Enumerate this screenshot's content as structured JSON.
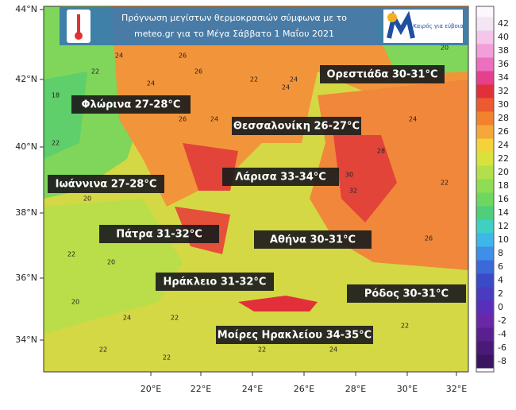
{
  "header": {
    "title_lines": [
      "Πρόγνωση μεγίστων θερμοκρασιών σύμφωνα με το",
      "meteo.gr για το Μέγα Σάββατο 1 Μαΐου 2021"
    ],
    "logo_text": "Καιρός για εύβοια"
  },
  "map": {
    "lat_ticks": [
      "44°N",
      "42°N",
      "40°N",
      "38°N",
      "36°N",
      "34°N"
    ],
    "lon_ticks": [
      "20°E",
      "22°E",
      "24°E",
      "26°E",
      "28°E",
      "30°E",
      "32°E"
    ],
    "city_labels": [
      "Ορεστιάδα 30-31°C",
      "Φλώρινα 27-28°C",
      "Θεσσαλονίκη 26-27°C",
      "Λάρισα 33-34°C",
      "Ιωάννινα 27-28°C",
      "Πάτρα 31-32°C",
      "Αθήνα 30-31°C",
      "Ηράκλειο 31-32°C",
      "Ρόδος 30-31°C",
      "Μοίρες Ηρακλείου 34-35°C"
    ],
    "contour_labels": [
      "18",
      "22",
      "24",
      "26",
      "22",
      "20",
      "24",
      "26",
      "22",
      "24",
      "20",
      "22",
      "24",
      "22",
      "26",
      "24",
      "22",
      "20",
      "22",
      "24",
      "22",
      "26",
      "30",
      "28",
      "32",
      "24",
      "22",
      "20",
      "22",
      "24"
    ]
  },
  "legend": {
    "ticks": [
      "42",
      "40",
      "38",
      "36",
      "34",
      "32",
      "30",
      "28",
      "26",
      "24",
      "22",
      "20",
      "18",
      "16",
      "14",
      "12",
      "10",
      "8",
      "6",
      "4",
      "2",
      "0",
      "-2",
      "-4",
      "-6",
      "-8"
    ],
    "colors": [
      "#f3e6f3",
      "#f4c6ea",
      "#f19fd9",
      "#ec6fc0",
      "#e63f8c",
      "#e2303a",
      "#ec5a30",
      "#f2822f",
      "#f5a73a",
      "#f3d23c",
      "#d9e23c",
      "#b3e04a",
      "#8fdc55",
      "#6fd65f",
      "#4fce7b",
      "#3fcfc4",
      "#3fb6e8",
      "#3f8ee8",
      "#3a6ad8",
      "#3a4ac8",
      "#4a3cc0",
      "#5a2eb8",
      "#6a28a8",
      "#5a2090",
      "#4a1a78",
      "#3a1460"
    ]
  }
}
